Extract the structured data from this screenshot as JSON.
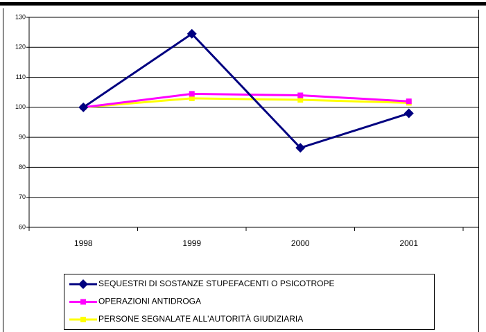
{
  "chart_data": {
    "type": "line",
    "categories": [
      "1998",
      "1999",
      "2000",
      "2001"
    ],
    "series": [
      {
        "name": "SEQUESTRI DI SOSTANZE STUPEFACENTI O PSICOTROPE",
        "color": "#000080",
        "marker": "diamond",
        "values": [
          100,
          124.5,
          86.5,
          98
        ]
      },
      {
        "name": "OPERAZIONI ANTIDROGA",
        "color": "#ff00ff",
        "marker": "square",
        "values": [
          100,
          104.5,
          104,
          102
        ]
      },
      {
        "name": "PERSONE SEGNALATE ALL'AUTORITÀ GIUDIZIARIA",
        "color": "#ffff00",
        "marker": "square",
        "values": [
          100,
          103,
          102.5,
          101.5
        ]
      }
    ],
    "ylim": [
      60,
      130
    ],
    "yticks": [
      60,
      70,
      80,
      90,
      100,
      110,
      120,
      130
    ],
    "grid": true
  }
}
